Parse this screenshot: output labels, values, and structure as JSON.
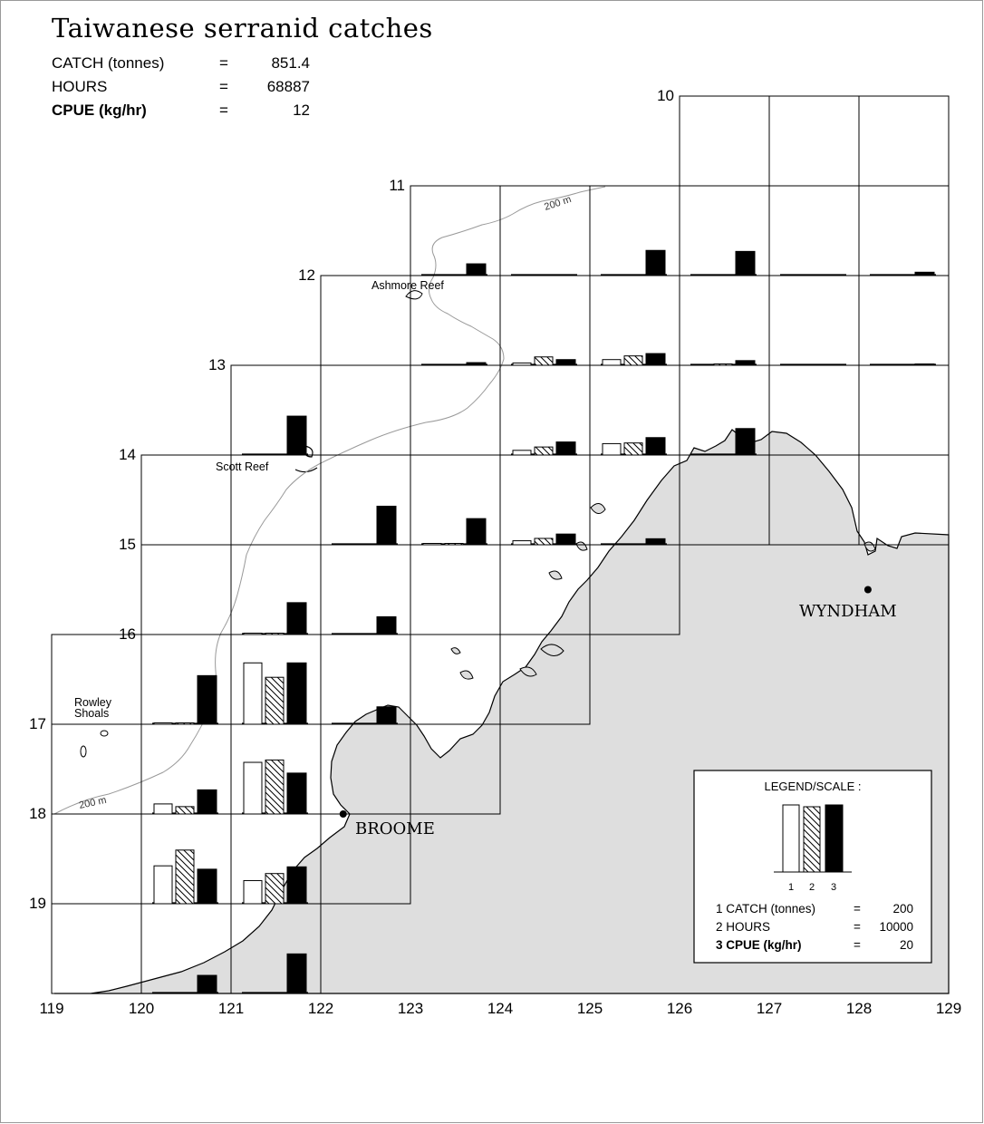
{
  "title": "Taiwanese serranid catches",
  "stats": [
    {
      "label": "CATCH (tonnes)",
      "eq": "=",
      "value": "851.4",
      "bold": false
    },
    {
      "label": "HOURS",
      "eq": "=",
      "value": "68887",
      "bold": false
    },
    {
      "label": "CPUE (kg/hr)",
      "eq": "=",
      "value": "12",
      "bold": true
    }
  ],
  "axes": {
    "lon": [
      119,
      120,
      121,
      122,
      123,
      124,
      125,
      126,
      127,
      128,
      129
    ],
    "lat": [
      10,
      11,
      12,
      13,
      14,
      15,
      16,
      17,
      18,
      19
    ]
  },
  "place_labels": {
    "ashmore": "Ashmore Reef",
    "scott": "Scott Reef",
    "rowley_1": "Rowley",
    "rowley_2": "Shoals",
    "depth_north": "200 m",
    "depth_south": "200 m",
    "broome": "BROOME",
    "wyndham": "WYNDHAM"
  },
  "towns": [
    {
      "name": "BROOME",
      "lon": 122.25,
      "lat": 18.0
    },
    {
      "name": "WYNDHAM",
      "lon": 128.1,
      "lat": 15.5
    }
  ],
  "legend": {
    "title": "LEGEND/SCALE :",
    "numbers": [
      "1",
      "2",
      "3"
    ],
    "rows": [
      {
        "label": "1 CATCH (tonnes)",
        "eq": "=",
        "value": "200",
        "bold": false
      },
      {
        "label": "2 HOURS",
        "eq": "=",
        "value": "10000",
        "bold": false
      },
      {
        "label": "3 CPUE (kg/hr)",
        "eq": "=",
        "value": "20",
        "bold": true
      }
    ]
  },
  "chart_data": {
    "type": "bar",
    "description_units": "Per 1x1 degree grid cell, three bars: catch (tonnes), fishing hours, CPUE (kg/hr). Scale: full legend bar = 200 t / 10000 h / 20 kg/hr.",
    "series": [
      "catch_tonnes",
      "hours",
      "cpue_kg_per_hr"
    ],
    "scale_full": {
      "catch_tonnes": 200,
      "hours": 10000,
      "cpue_kg_per_hr": 20
    },
    "cells": [
      {
        "lon": 123,
        "lat": 11,
        "catch_tonnes": 0,
        "hours": 0,
        "cpue_kg_per_hr": 3.5
      },
      {
        "lon": 124,
        "lat": 11,
        "catch_tonnes": 0,
        "hours": 0,
        "cpue_kg_per_hr": 0
      },
      {
        "lon": 125,
        "lat": 11,
        "catch_tonnes": 0,
        "hours": 0,
        "cpue_kg_per_hr": 7.5
      },
      {
        "lon": 126,
        "lat": 11,
        "catch_tonnes": 0,
        "hours": 0,
        "cpue_kg_per_hr": 7.2
      },
      {
        "lon": 127,
        "lat": 11,
        "catch_tonnes": 0,
        "hours": 0,
        "cpue_kg_per_hr": 0
      },
      {
        "lon": 128,
        "lat": 11,
        "catch_tonnes": 0,
        "hours": 0,
        "cpue_kg_per_hr": 1.0
      },
      {
        "lon": 123,
        "lat": 12,
        "catch_tonnes": 0,
        "hours": 0,
        "cpue_kg_per_hr": 0.8
      },
      {
        "lon": 124,
        "lat": 12,
        "catch_tonnes": 7,
        "hours": 1250,
        "cpue_kg_per_hr": 1.7
      },
      {
        "lon": 125,
        "lat": 12,
        "catch_tonnes": 17,
        "hours": 1400,
        "cpue_kg_per_hr": 3.5
      },
      {
        "lon": 126,
        "lat": 12,
        "catch_tonnes": 0,
        "hours": 50,
        "cpue_kg_per_hr": 1.4
      },
      {
        "lon": 127,
        "lat": 12,
        "catch_tonnes": 0,
        "hours": 0,
        "cpue_kg_per_hr": 0
      },
      {
        "lon": 128,
        "lat": 12,
        "catch_tonnes": 0,
        "hours": 0,
        "cpue_kg_per_hr": 0.2
      },
      {
        "lon": 121,
        "lat": 13,
        "catch_tonnes": 0,
        "hours": 0,
        "cpue_kg_per_hr": 11.6
      },
      {
        "lon": 124,
        "lat": 13,
        "catch_tonnes": 14,
        "hours": 1200,
        "cpue_kg_per_hr": 3.9
      },
      {
        "lon": 125,
        "lat": 13,
        "catch_tonnes": 34,
        "hours": 1800,
        "cpue_kg_per_hr": 5.2
      },
      {
        "lon": 126,
        "lat": 13,
        "catch_tonnes": 0,
        "hours": 0,
        "cpue_kg_per_hr": 7.9
      },
      {
        "lon": 122,
        "lat": 14,
        "catch_tonnes": 0,
        "hours": 0,
        "cpue_kg_per_hr": 11.5
      },
      {
        "lon": 123,
        "lat": 14,
        "catch_tonnes": 1,
        "hours": 70,
        "cpue_kg_per_hr": 7.8
      },
      {
        "lon": 124,
        "lat": 14,
        "catch_tonnes": 12,
        "hours": 950,
        "cpue_kg_per_hr": 3.2
      },
      {
        "lon": 125,
        "lat": 14,
        "catch_tonnes": 0,
        "hours": 0,
        "cpue_kg_per_hr": 1.8
      },
      {
        "lon": 121,
        "lat": 15,
        "catch_tonnes": 2,
        "hours": 100,
        "cpue_kg_per_hr": 9.5
      },
      {
        "lon": 122,
        "lat": 15,
        "catch_tonnes": 0,
        "hours": 0,
        "cpue_kg_per_hr": 5.3
      },
      {
        "lon": 120,
        "lat": 16,
        "catch_tonnes": 4,
        "hours": 120,
        "cpue_kg_per_hr": 14.5
      },
      {
        "lon": 121,
        "lat": 16,
        "catch_tonnes": 183,
        "hours": 7000,
        "cpue_kg_per_hr": 18.3
      },
      {
        "lon": 122,
        "lat": 16,
        "catch_tonnes": 0,
        "hours": 0,
        "cpue_kg_per_hr": 5.2
      },
      {
        "lon": 120,
        "lat": 17,
        "catch_tonnes": 30,
        "hours": 1100,
        "cpue_kg_per_hr": 7.2
      },
      {
        "lon": 121,
        "lat": 17,
        "catch_tonnes": 154,
        "hours": 8050,
        "cpue_kg_per_hr": 12.2
      },
      {
        "lon": 120,
        "lat": 18,
        "catch_tonnes": 113,
        "hours": 8000,
        "cpue_kg_per_hr": 10.3
      },
      {
        "lon": 121,
        "lat": 18,
        "catch_tonnes": 69,
        "hours": 4500,
        "cpue_kg_per_hr": 11.0
      },
      {
        "lon": 120,
        "lat": 19,
        "catch_tonnes": 0,
        "hours": 0,
        "cpue_kg_per_hr": 5.4
      },
      {
        "lon": 121,
        "lat": 19,
        "catch_tonnes": 0,
        "hours": 0,
        "cpue_kg_per_hr": 11.8
      }
    ]
  }
}
